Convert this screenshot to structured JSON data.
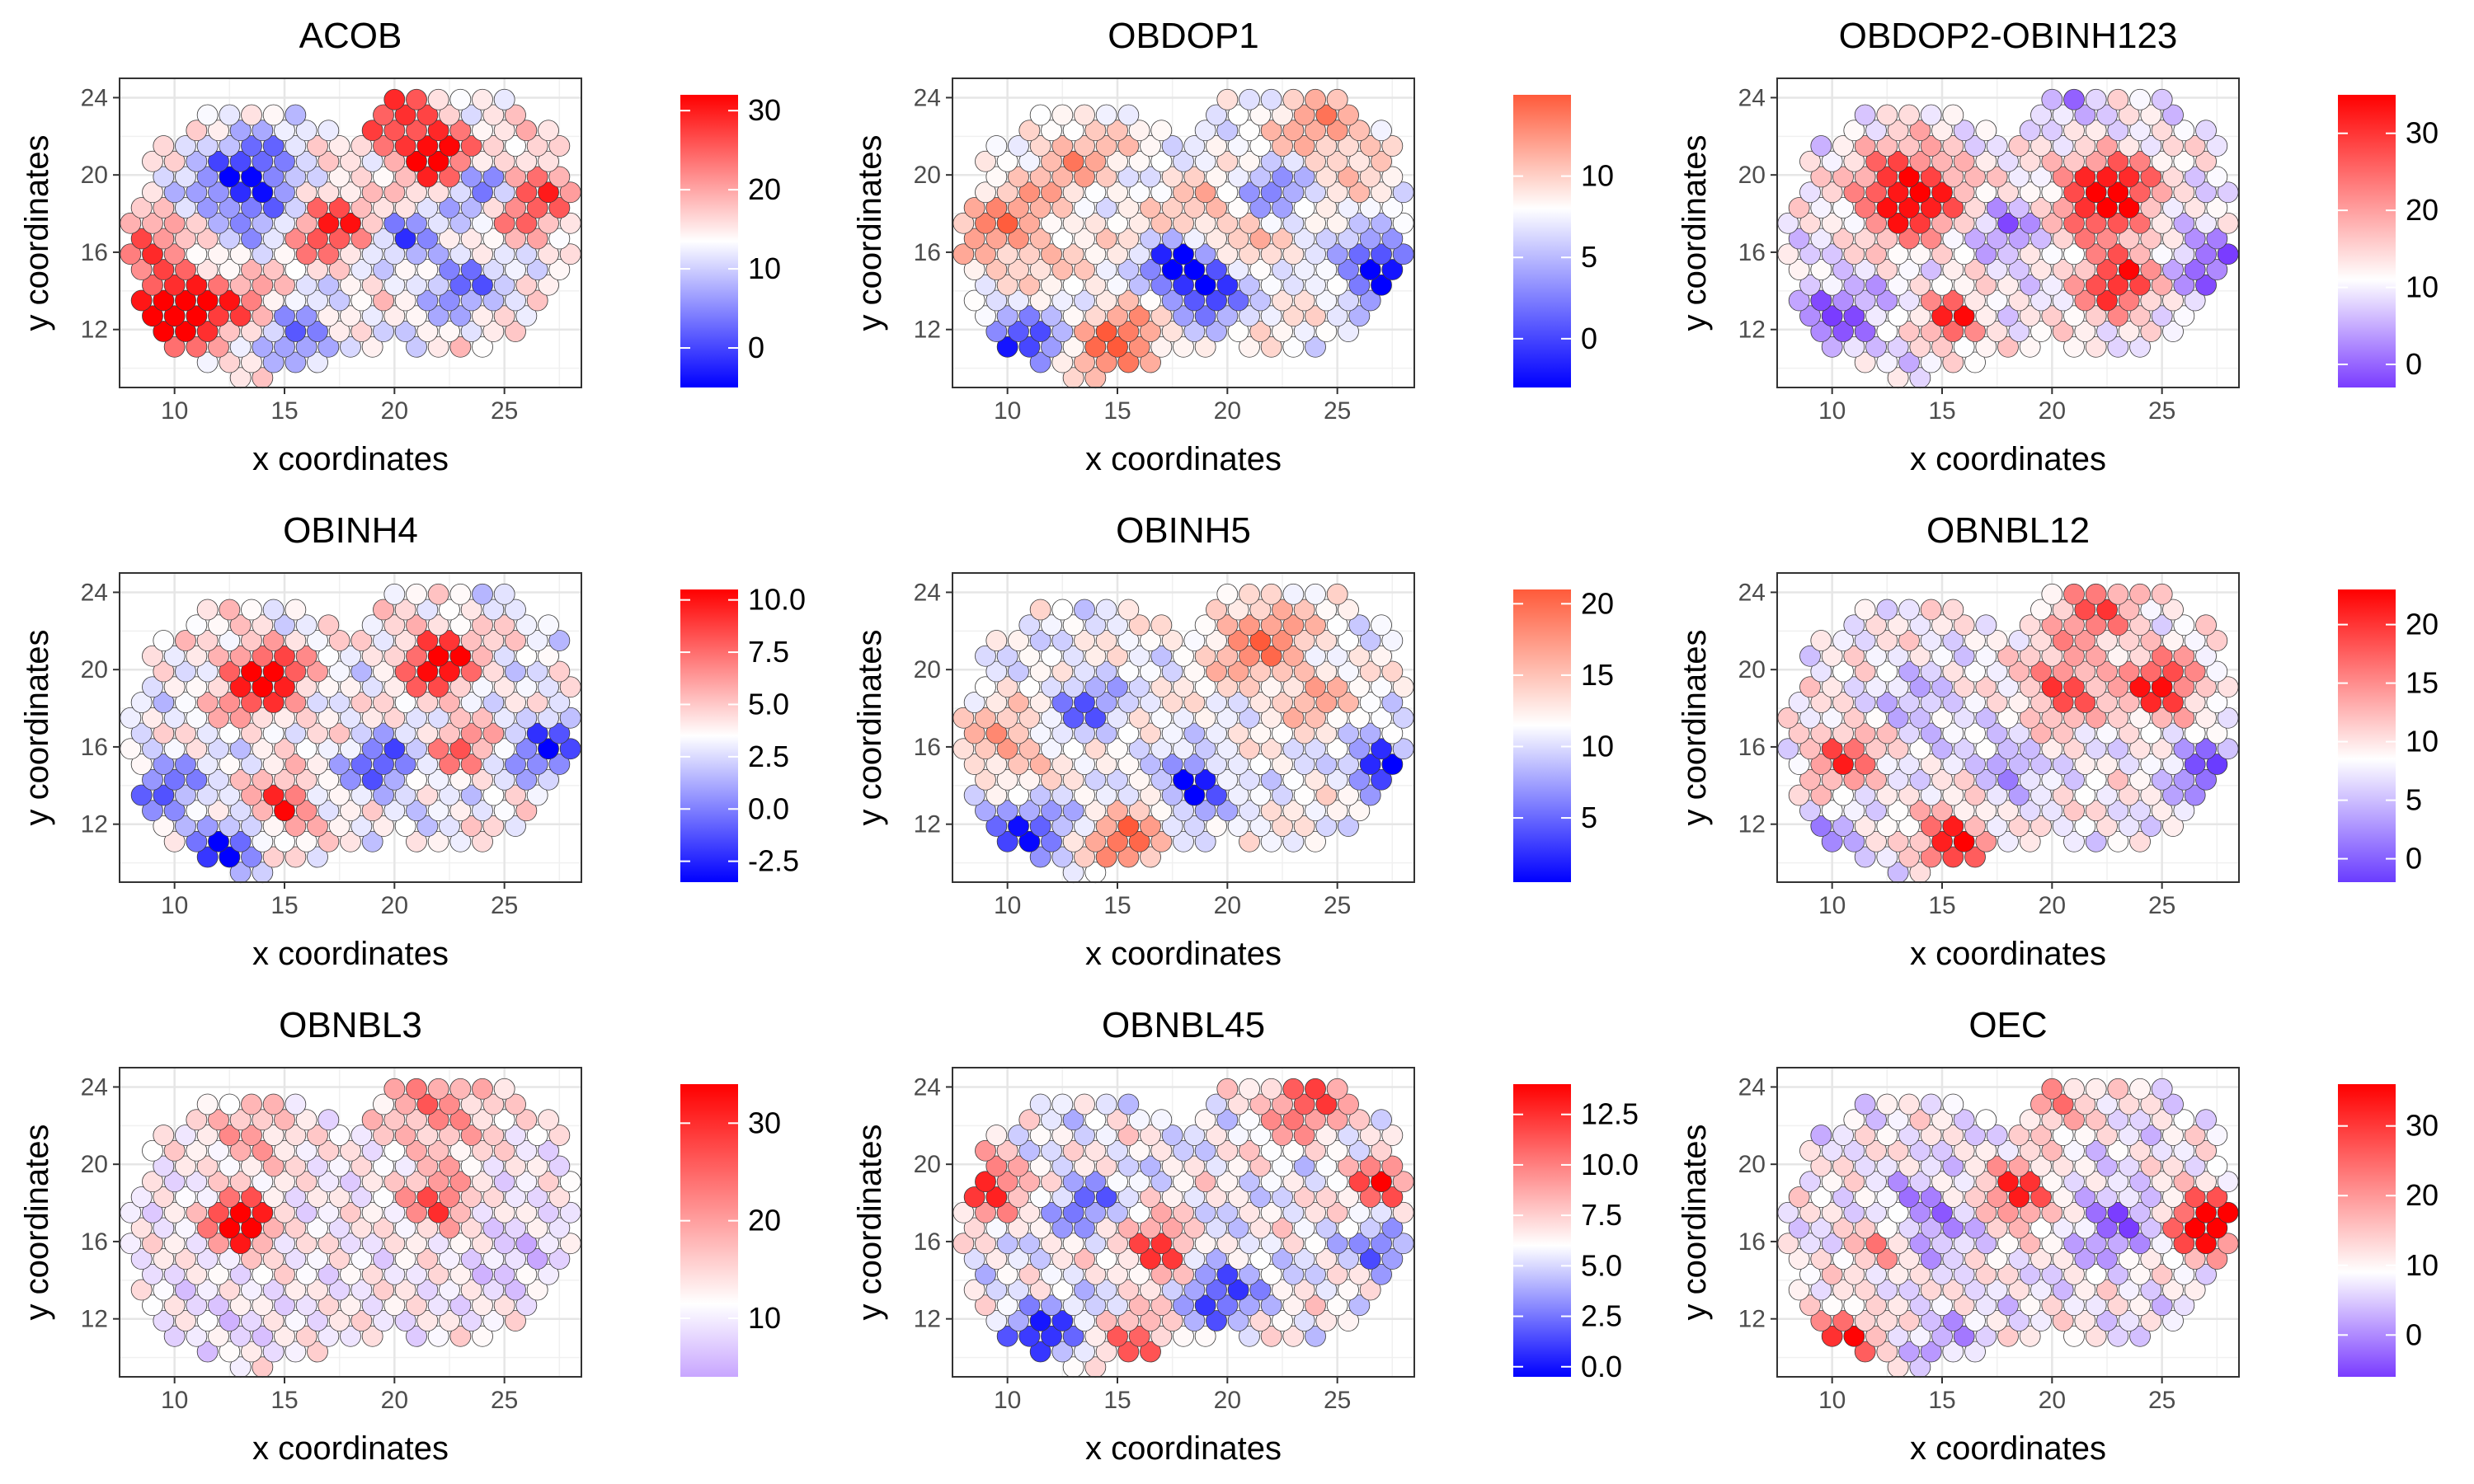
{
  "chart_data": [
    {
      "type": "scatter",
      "title": "ACOB",
      "xlabel": "x coordinates",
      "ylabel": "y coordinates",
      "xlim": [
        7.5,
        28.5
      ],
      "ylim": [
        9,
        25
      ],
      "xticks": [
        10,
        15,
        20,
        25
      ],
      "yticks": [
        12,
        16,
        20,
        24
      ],
      "colorbar": {
        "min": -5,
        "max": 32,
        "mid": 13.5,
        "ticks": [
          0,
          10,
          20,
          30
        ],
        "labels": [
          "0",
          "10",
          "20",
          "30"
        ],
        "low_color": "#0000ff",
        "mid_color": "#ffffff",
        "high_color": "#ff0000"
      },
      "hotspots": [
        [
          10,
          13,
          2.2,
          1.4
        ],
        [
          22,
          21,
          1.6,
          1.2
        ],
        [
          17,
          17.5,
          1.8,
          0.9
        ],
        [
          26,
          19,
          2.2,
          0.8
        ],
        [
          8.5,
          17,
          1.6,
          0.6
        ],
        [
          13.5,
          13,
          1.5,
          0.5
        ],
        [
          20,
          23,
          2,
          0.7
        ]
      ],
      "coldspots": [
        [
          13.5,
          19.5,
          2.2,
          1.0
        ],
        [
          24,
          19.5,
          1.6,
          0.9
        ],
        [
          15.5,
          11.5,
          1.6,
          0.7
        ],
        [
          23,
          14.5,
          1.6,
          0.6
        ],
        [
          20.5,
          17,
          1.2,
          0.6
        ]
      ]
    },
    {
      "type": "scatter",
      "title": "OBDOP1",
      "xlabel": "x coordinates",
      "ylabel": "y coordinates",
      "xlim": [
        7.5,
        28.5
      ],
      "ylim": [
        9,
        25
      ],
      "xticks": [
        10,
        15,
        20,
        25
      ],
      "yticks": [
        12,
        16,
        20,
        24
      ],
      "colorbar": {
        "min": -3,
        "max": 15,
        "mid": 8,
        "ticks": [
          0,
          5,
          10
        ],
        "labels": [
          "0",
          "5",
          "10"
        ],
        "low_color": "#0000ff",
        "mid_color": "#ffffff",
        "high_color": "#ff5a3a"
      },
      "hotspots": [
        [
          15,
          11,
          2.2,
          1.0
        ],
        [
          10,
          17,
          2.5,
          0.7
        ],
        [
          20,
          17,
          2.5,
          0.8
        ],
        [
          24.5,
          22,
          2.5,
          0.6
        ],
        [
          13,
          21,
          2,
          0.5
        ]
      ],
      "coldspots": [
        [
          19,
          14.5,
          1.8,
          1.2
        ],
        [
          27,
          15,
          1.6,
          1.2
        ],
        [
          10.5,
          11,
          2.2,
          0.8
        ],
        [
          22,
          19,
          2,
          0.6
        ],
        [
          17.5,
          15.5,
          1.2,
          0.8
        ]
      ]
    },
    {
      "type": "scatter",
      "title": "OBDOP2-OBINH123",
      "xlabel": "x coordinates",
      "ylabel": "y coordinates",
      "xlim": [
        7.5,
        28.5
      ],
      "ylim": [
        9,
        25
      ],
      "xticks": [
        10,
        15,
        20,
        25
      ],
      "yticks": [
        12,
        16,
        20,
        24
      ],
      "colorbar": {
        "min": -3,
        "max": 35,
        "mid": 11,
        "ticks": [
          0,
          10,
          20,
          30
        ],
        "labels": [
          "0",
          "10",
          "20",
          "30"
        ],
        "low_color": "#7a3cff",
        "mid_color": "#ffffff",
        "high_color": "#ff0000"
      },
      "hotspots": [
        [
          13.5,
          19,
          2.2,
          1.2
        ],
        [
          15.5,
          12.5,
          1.2,
          1.0
        ],
        [
          22.5,
          19,
          2.0,
          1.3
        ],
        [
          23,
          14.5,
          1.8,
          0.9
        ]
      ],
      "coldspots": [
        [
          10,
          12.5,
          2.2,
          0.9
        ],
        [
          27,
          15.5,
          1.8,
          0.9
        ],
        [
          18,
          17,
          1.4,
          0.8
        ],
        [
          21,
          23.5,
          1.6,
          0.5
        ]
      ]
    },
    {
      "type": "scatter",
      "title": "OBINH4",
      "xlabel": "x coordinates",
      "ylabel": "y coordinates",
      "xlim": [
        7.5,
        28.5
      ],
      "ylim": [
        9,
        25
      ],
      "xticks": [
        10,
        15,
        20,
        25
      ],
      "yticks": [
        12,
        16,
        20,
        24
      ],
      "colorbar": {
        "min": -3.5,
        "max": 10.5,
        "mid": 3.5,
        "ticks": [
          -2.5,
          0,
          2.5,
          5,
          7.5,
          10
        ],
        "labels": [
          "-2.5",
          "0.0",
          "2.5",
          "5.0",
          "7.5",
          "10.0"
        ],
        "low_color": "#0000ff",
        "mid_color": "#ffffff",
        "high_color": "#ff0000"
      },
      "hotspots": [
        [
          14,
          19.5,
          1.8,
          1.2
        ],
        [
          15,
          13,
          1.2,
          1.0
        ],
        [
          22,
          20.5,
          1.6,
          1.2
        ],
        [
          23,
          16,
          1.4,
          0.6
        ]
      ],
      "coldspots": [
        [
          12,
          10.5,
          1.6,
          0.9
        ],
        [
          27,
          16,
          1.6,
          0.8
        ],
        [
          19.5,
          15,
          1.6,
          0.7
        ],
        [
          9.5,
          14,
          1.6,
          0.6
        ]
      ]
    },
    {
      "type": "scatter",
      "title": "OBINH5",
      "xlabel": "x coordinates",
      "ylabel": "y coordinates",
      "xlim": [
        7.5,
        28.5
      ],
      "ylim": [
        9,
        25
      ],
      "xticks": [
        10,
        15,
        20,
        25
      ],
      "yticks": [
        12,
        16,
        20,
        24
      ],
      "colorbar": {
        "min": 0.5,
        "max": 21,
        "mid": 11.5,
        "ticks": [
          5,
          10,
          15,
          20
        ],
        "labels": [
          "5",
          "10",
          "15",
          "20"
        ],
        "low_color": "#0000ff",
        "mid_color": "#ffffff",
        "high_color": "#ff5a3a"
      },
      "hotspots": [
        [
          15.5,
          11,
          1.6,
          1.0
        ],
        [
          21.5,
          21.5,
          2.2,
          0.8
        ],
        [
          10,
          16,
          2.0,
          0.6
        ],
        [
          24,
          18.5,
          1.4,
          0.5
        ]
      ],
      "coldspots": [
        [
          18.5,
          14,
          1.2,
          1.3
        ],
        [
          27,
          15,
          1.2,
          1.3
        ],
        [
          10.5,
          11.5,
          2.0,
          0.8
        ],
        [
          13.5,
          18,
          1.6,
          0.6
        ]
      ]
    },
    {
      "type": "scatter",
      "title": "OBNBL12",
      "xlabel": "x coordinates",
      "ylabel": "y coordinates",
      "xlim": [
        7.5,
        28.5
      ],
      "ylim": [
        9,
        25
      ],
      "xticks": [
        10,
        15,
        20,
        25
      ],
      "yticks": [
        12,
        16,
        20,
        24
      ],
      "colorbar": {
        "min": -2,
        "max": 23,
        "mid": 8.5,
        "ticks": [
          0,
          5,
          10,
          15,
          20
        ],
        "labels": [
          "0",
          "5",
          "10",
          "15",
          "20"
        ],
        "low_color": "#6a3cff",
        "mid_color": "#ffffff",
        "high_color": "#ff0000"
      },
      "hotspots": [
        [
          15.5,
          11,
          1.4,
          1.2
        ],
        [
          25,
          19,
          1.6,
          1.0
        ],
        [
          20.5,
          19,
          1.6,
          0.8
        ],
        [
          10.5,
          15.5,
          1.6,
          0.7
        ],
        [
          22,
          23,
          2,
          0.6
        ]
      ],
      "coldspots": [
        [
          27,
          15,
          1.6,
          1.0
        ],
        [
          18,
          15,
          1.2,
          0.8
        ],
        [
          14,
          18,
          1.6,
          0.5
        ],
        [
          10,
          11,
          1.6,
          0.5
        ]
      ]
    },
    {
      "type": "scatter",
      "title": "OBNBL3",
      "xlabel": "x coordinates",
      "ylabel": "y coordinates",
      "xlim": [
        7.5,
        28.5
      ],
      "ylim": [
        9,
        25
      ],
      "xticks": [
        10,
        15,
        20,
        25
      ],
      "yticks": [
        12,
        16,
        20,
        24
      ],
      "colorbar": {
        "min": 4,
        "max": 34,
        "mid": 11.5,
        "ticks": [
          10,
          20,
          30
        ],
        "labels": [
          "10",
          "20",
          "30"
        ],
        "low_color": "#c8a6ff",
        "mid_color": "#ffffff",
        "high_color": "#ff0000"
      },
      "hotspots": [
        [
          13,
          17,
          1.2,
          1.8
        ],
        [
          22,
          18,
          1.4,
          0.8
        ],
        [
          22,
          23,
          2.4,
          0.5
        ],
        [
          13.5,
          21.5,
          1.8,
          0.4
        ]
      ],
      "coldspots": [
        [
          25.5,
          15.5,
          2.2,
          0.6
        ],
        [
          12,
          12,
          2,
          0.4
        ]
      ]
    },
    {
      "type": "scatter",
      "title": "OBNBL45",
      "xlabel": "x coordinates",
      "ylabel": "y coordinates",
      "xlim": [
        7.5,
        28.5
      ],
      "ylim": [
        9,
        25
      ],
      "xticks": [
        10,
        15,
        20,
        25
      ],
      "yticks": [
        12,
        16,
        20,
        24
      ],
      "colorbar": {
        "min": -0.5,
        "max": 14,
        "mid": 6,
        "ticks": [
          0,
          2.5,
          5,
          7.5,
          10,
          12.5
        ],
        "labels": [
          "0.0",
          "2.5",
          "5.0",
          "7.5",
          "10.0",
          "12.5"
        ],
        "low_color": "#0000ff",
        "mid_color": "#ffffff",
        "high_color": "#ff0000"
      },
      "hotspots": [
        [
          9,
          19,
          1.5,
          1.0
        ],
        [
          17,
          15.5,
          1.4,
          1.0
        ],
        [
          27,
          19,
          1.2,
          1.0
        ],
        [
          23.5,
          23.5,
          2,
          0.7
        ],
        [
          16,
          10.5,
          1.6,
          0.7
        ]
      ],
      "coldspots": [
        [
          11.5,
          11,
          1.8,
          0.9
        ],
        [
          19.5,
          13.5,
          1.8,
          0.8
        ],
        [
          27,
          15.5,
          1.2,
          0.8
        ],
        [
          13.5,
          18,
          1.4,
          0.6
        ]
      ]
    },
    {
      "type": "scatter",
      "title": "OEC",
      "xlabel": "x coordinates",
      "ylabel": "y coordinates",
      "xlim": [
        7.5,
        28.5
      ],
      "ylim": [
        9,
        25
      ],
      "xticks": [
        10,
        15,
        20,
        25
      ],
      "yticks": [
        12,
        16,
        20,
        24
      ],
      "colorbar": {
        "min": -6,
        "max": 36,
        "mid": 9,
        "ticks": [
          0,
          10,
          20,
          30
        ],
        "labels": [
          "0",
          "10",
          "20",
          "30"
        ],
        "low_color": "#7a3cff",
        "mid_color": "#ffffff",
        "high_color": "#ff0000"
      },
      "hotspots": [
        [
          27,
          17,
          1.6,
          1.3
        ],
        [
          18.5,
          18.5,
          1.4,
          1.0
        ],
        [
          10.5,
          11,
          1.4,
          0.9
        ],
        [
          12.5,
          16,
          1.6,
          0.5
        ],
        [
          20,
          23.5,
          1.6,
          0.5
        ]
      ],
      "coldspots": [
        [
          14,
          17,
          1.8,
          1.0
        ],
        [
          23,
          17,
          1.8,
          0.9
        ],
        [
          15,
          11,
          1.4,
          0.5
        ]
      ]
    }
  ]
}
